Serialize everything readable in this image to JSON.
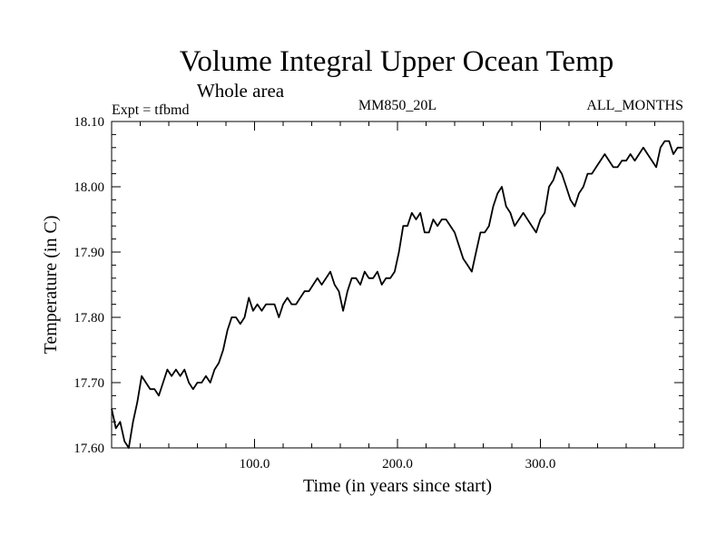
{
  "chart_data": {
    "type": "line",
    "title": "Volume Integral Upper Ocean Temp",
    "subtitle": "Whole area",
    "annotations": {
      "left": "Expt = tfbmd",
      "center": "MM850_20L",
      "right": "ALL_MONTHS"
    },
    "xlabel": "Time (in years since start)",
    "ylabel": "Temperature (in C)",
    "xlim": [
      0,
      400
    ],
    "ylim": [
      17.6,
      18.1
    ],
    "x_ticks": [
      100,
      200,
      300
    ],
    "x_tick_labels": [
      "100.0",
      "200.0",
      "300.0"
    ],
    "y_ticks": [
      17.6,
      17.7,
      17.8,
      17.9,
      18.0,
      18.1
    ],
    "y_tick_labels": [
      "17.60",
      "17.70",
      "17.80",
      "17.90",
      "18.00",
      "18.10"
    ],
    "grid": false,
    "line_color": "#000000",
    "series": [
      {
        "x": [
          0,
          3,
          6,
          9,
          12,
          15,
          18,
          21,
          24,
          27,
          30,
          33,
          36,
          39,
          42,
          45,
          48,
          51,
          54,
          57,
          60,
          63,
          66,
          69,
          72,
          75,
          78,
          81,
          84,
          87,
          90,
          93,
          96,
          99,
          102,
          105,
          108,
          111,
          114,
          117,
          120,
          123,
          126,
          129,
          132,
          135,
          138,
          141,
          144,
          147,
          150,
          153,
          156,
          159,
          162,
          165,
          168,
          171,
          174,
          177,
          180,
          183,
          186,
          189,
          192,
          195,
          198,
          201,
          204,
          207,
          210,
          213,
          216,
          219,
          222,
          225,
          228,
          231,
          234,
          237,
          240,
          243,
          246,
          249,
          252,
          255,
          258,
          261,
          264,
          267,
          270,
          273,
          276,
          279,
          282,
          285,
          288,
          291,
          294,
          297,
          300,
          303,
          306,
          309,
          312,
          315,
          318,
          321,
          324,
          327,
          330,
          333,
          336,
          339,
          342,
          345,
          348,
          351,
          354,
          357,
          360,
          363,
          366,
          369,
          372,
          375,
          378,
          381,
          384,
          387,
          390,
          393,
          396,
          399
        ],
        "values": [
          17.66,
          17.63,
          17.64,
          17.61,
          17.6,
          17.64,
          17.67,
          17.71,
          17.7,
          17.69,
          17.69,
          17.68,
          17.7,
          17.72,
          17.71,
          17.72,
          17.71,
          17.72,
          17.7,
          17.69,
          17.7,
          17.7,
          17.71,
          17.7,
          17.72,
          17.73,
          17.75,
          17.78,
          17.8,
          17.8,
          17.79,
          17.8,
          17.83,
          17.81,
          17.82,
          17.81,
          17.82,
          17.82,
          17.82,
          17.8,
          17.82,
          17.83,
          17.82,
          17.82,
          17.83,
          17.84,
          17.84,
          17.85,
          17.86,
          17.85,
          17.86,
          17.87,
          17.85,
          17.84,
          17.81,
          17.84,
          17.86,
          17.86,
          17.85,
          17.87,
          17.86,
          17.86,
          17.87,
          17.85,
          17.86,
          17.86,
          17.87,
          17.9,
          17.94,
          17.94,
          17.96,
          17.95,
          17.96,
          17.93,
          17.93,
          17.95,
          17.94,
          17.95,
          17.95,
          17.94,
          17.93,
          17.91,
          17.89,
          17.88,
          17.87,
          17.9,
          17.93,
          17.93,
          17.94,
          17.97,
          17.99,
          18.0,
          17.97,
          17.96,
          17.94,
          17.95,
          17.96,
          17.95,
          17.94,
          17.93,
          17.95,
          17.96,
          18.0,
          18.01,
          18.03,
          18.02,
          18.0,
          17.98,
          17.97,
          17.99,
          18.0,
          18.02,
          18.02,
          18.03,
          18.04,
          18.05,
          18.04,
          18.03,
          18.03,
          18.04,
          18.04,
          18.05,
          18.04,
          18.05,
          18.06,
          18.05,
          18.04,
          18.03,
          18.06,
          18.07,
          18.07,
          18.05,
          18.06,
          18.06
        ]
      }
    ]
  }
}
